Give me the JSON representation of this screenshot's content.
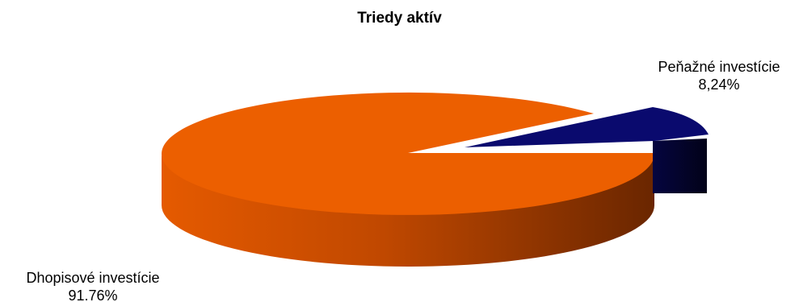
{
  "chart_data": {
    "type": "pie",
    "title": "Triedy aktív",
    "slices": [
      {
        "name": "Peňažné investície",
        "value_label": "8,24%",
        "value": 8.24,
        "color": "#0a0a6e",
        "side_color": "#03032a",
        "exploded": true
      },
      {
        "name": "Dhopisové investície",
        "value_label": "91.76%",
        "value": 91.76,
        "color": "#ec5f00",
        "side_color": "#7a2d00",
        "exploded": false
      }
    ],
    "legend": "none",
    "style": "3d"
  }
}
